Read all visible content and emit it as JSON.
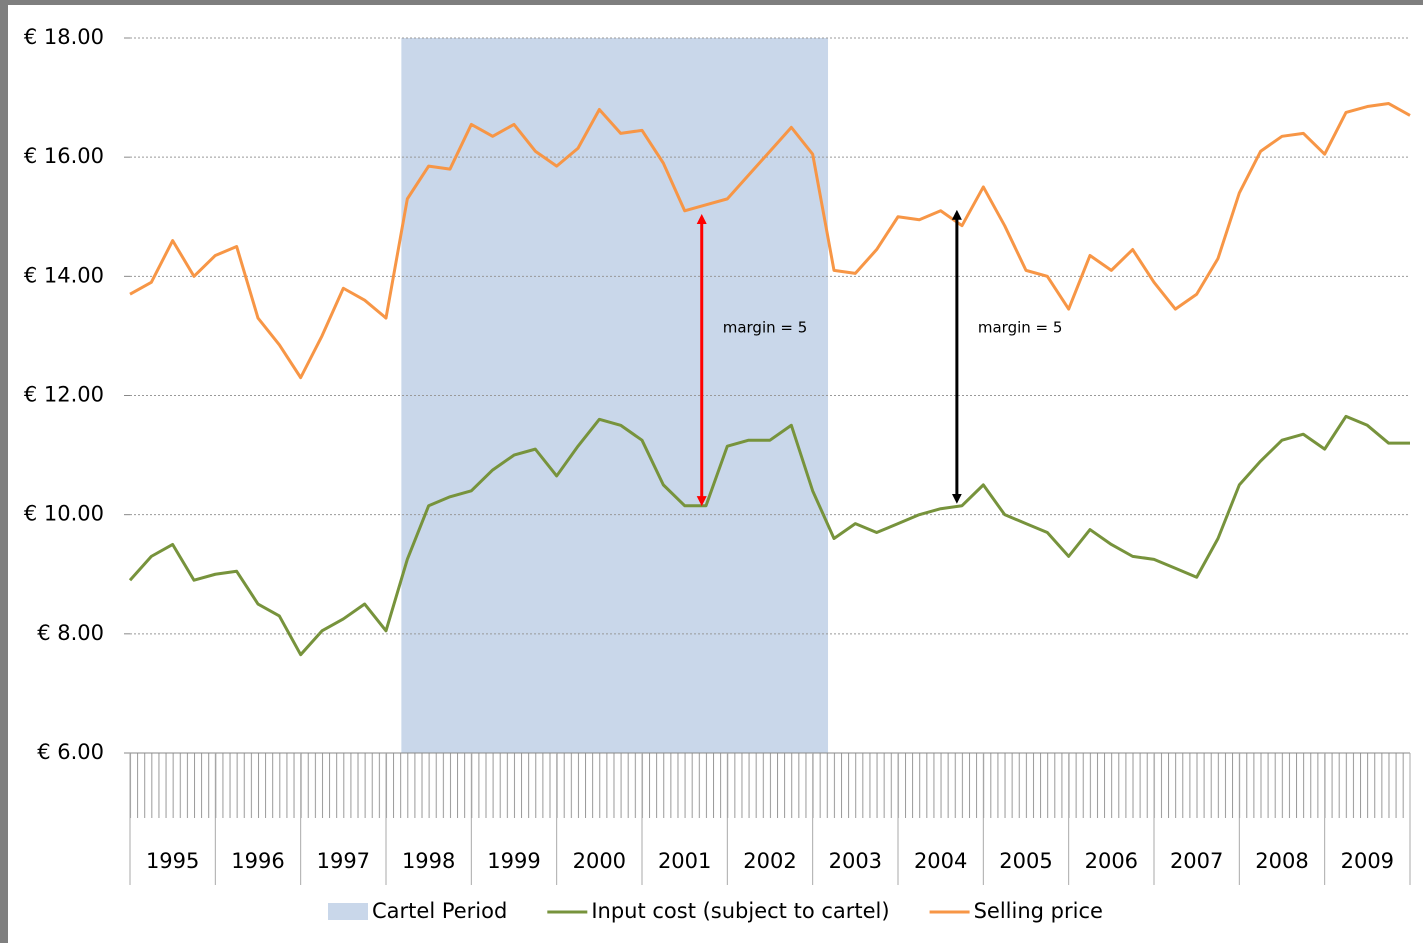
{
  "chart_data": {
    "type": "line",
    "categories": [
      "1995",
      "1996",
      "1997",
      "1998",
      "1999",
      "2000",
      "2001",
      "2002",
      "2003",
      "2004",
      "2005",
      "2006",
      "2007",
      "2008",
      "2009"
    ],
    "x": [
      1995,
      1995.25,
      1995.5,
      1995.75,
      1996,
      1996.25,
      1996.5,
      1996.75,
      1997,
      1997.25,
      1997.5,
      1997.75,
      1998,
      1998.25,
      1998.5,
      1998.75,
      1999,
      1999.25,
      1999.5,
      1999.75,
      2000,
      2000.25,
      2000.5,
      2000.75,
      2001,
      2001.25,
      2001.5,
      2001.75,
      2002,
      2002.25,
      2002.5,
      2002.75,
      2003,
      2003.25,
      2003.5,
      2003.75,
      2004,
      2004.25,
      2004.5,
      2004.75,
      2005,
      2005.25,
      2005.5,
      2005.75,
      2006,
      2006.25,
      2006.5,
      2006.75,
      2007,
      2007.25,
      2007.5,
      2007.75,
      2008,
      2008.25,
      2008.5,
      2008.75,
      2009,
      2009.25,
      2009.5,
      2009.75,
      2010
    ],
    "xlim": [
      1995,
      2010
    ],
    "ylim": [
      6,
      18
    ],
    "yticks": [
      {
        "value": 6,
        "label": "€ 6.00"
      },
      {
        "value": 8,
        "label": "€ 8.00"
      },
      {
        "value": 10,
        "label": "€ 10.00"
      },
      {
        "value": 12,
        "label": "€ 12.00"
      },
      {
        "value": 14,
        "label": "€ 14.00"
      },
      {
        "value": 16,
        "label": "€ 16.00"
      },
      {
        "value": 18,
        "label": "€ 18.00"
      }
    ],
    "grid": true,
    "shaded_regions": [
      {
        "name": "Cartel Period",
        "xlim": [
          1998.18,
          2003.18
        ],
        "color": "#c9d7ea"
      }
    ],
    "series": [
      {
        "name": "Input cost (subject to cartel)",
        "color": "#77933c",
        "values": [
          8.9,
          9.3,
          9.5,
          8.9,
          9.0,
          9.05,
          8.5,
          8.3,
          7.65,
          8.05,
          8.25,
          8.5,
          8.05,
          9.25,
          10.15,
          10.3,
          10.4,
          10.75,
          11.0,
          11.1,
          10.65,
          11.15,
          11.6,
          11.5,
          11.25,
          10.5,
          10.15,
          10.15,
          11.15,
          11.25,
          11.25,
          11.5,
          10.4,
          9.6,
          9.85,
          9.7,
          9.85,
          10.0,
          10.1,
          10.15,
          10.5,
          10.0,
          9.85,
          9.7,
          9.3,
          9.75,
          9.5,
          9.3,
          9.25,
          9.1,
          8.95,
          9.6,
          10.5,
          10.9,
          11.25,
          11.35,
          11.1,
          11.65,
          11.5,
          11.2,
          11.2
        ]
      },
      {
        "name": "Selling price",
        "color": "#f79646",
        "values": [
          13.7,
          13.9,
          14.6,
          14.0,
          14.35,
          14.5,
          13.3,
          12.85,
          12.3,
          13.0,
          13.8,
          13.6,
          13.3,
          15.3,
          15.85,
          15.8,
          16.55,
          16.35,
          16.55,
          16.1,
          15.85,
          16.15,
          16.8,
          16.4,
          16.45,
          15.9,
          15.1,
          15.2,
          15.3,
          15.7,
          16.1,
          16.5,
          16.05,
          14.1,
          14.05,
          14.45,
          15.0,
          14.95,
          15.1,
          14.85,
          15.5,
          14.85,
          14.1,
          14.0,
          13.45,
          14.35,
          14.1,
          14.45,
          13.9,
          13.45,
          13.7,
          14.3,
          15.4,
          16.1,
          16.35,
          16.4,
          16.05,
          16.75,
          16.85,
          16.9,
          16.7
        ]
      }
    ],
    "annotations": [
      {
        "text": "margin = 5",
        "x": 2001.7,
        "y": [
          15.03,
          10.16
        ],
        "color": "#ff0000"
      },
      {
        "text": "margin = 5",
        "x": 2004.69,
        "y": [
          15.1,
          10.2
        ],
        "color": "#000000"
      }
    ]
  }
}
